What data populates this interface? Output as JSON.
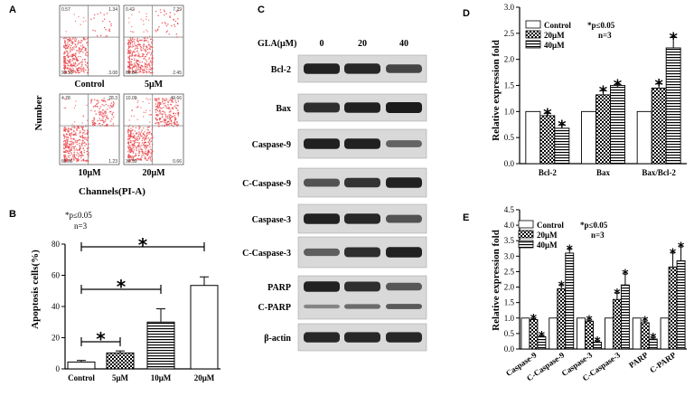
{
  "panels": {
    "a": {
      "label": "A",
      "ylabel": "Number",
      "xlabel": "Channels(PI-A)",
      "plots": [
        {
          "name": "Control",
          "q": [
            "0.57",
            "1.34",
            "93.10",
            "3.08"
          ]
        },
        {
          "name": "5μM",
          "q": [
            "0.42",
            "7.29",
            "89.84",
            "2.45"
          ]
        },
        {
          "name": "10μM",
          "q": [
            "4.78",
            "28.3",
            "65.66",
            "1.23"
          ]
        },
        {
          "name": "20μM",
          "q": [
            "10.09",
            "49.66",
            "39.59",
            "0.66"
          ]
        }
      ]
    },
    "c": {
      "label": "C",
      "header_label": "GLA(μM)",
      "doses": [
        "0",
        "20",
        "40"
      ],
      "blots": [
        {
          "name": "Bcl-2",
          "bands": [
            0.95,
            0.9,
            0.65
          ]
        },
        {
          "name": "Bax",
          "bands": [
            0.85,
            0.95,
            1.0
          ]
        },
        {
          "name": "Caspase-9",
          "bands": [
            0.95,
            0.95,
            0.4
          ]
        },
        {
          "name": "C-Caspase-9",
          "bands": [
            0.55,
            0.8,
            0.95
          ]
        },
        {
          "name": "Caspase-3",
          "bands": [
            0.95,
            0.9,
            0.55
          ]
        },
        {
          "name": "C-Caspase-3",
          "bands": [
            0.45,
            0.85,
            0.95
          ]
        },
        {
          "name": "PARP",
          "sub": "C-PARP",
          "bands": [
            0.95,
            0.85,
            0.5
          ],
          "sub_bands": [
            0.3,
            0.55,
            0.7
          ]
        },
        {
          "name": "β-actin",
          "bands": [
            0.9,
            0.9,
            0.9
          ]
        }
      ]
    }
  },
  "chart_data": [
    {
      "id": "B",
      "type": "bar",
      "label": "B",
      "ylabel": "Apoptosis cells(%)",
      "ylim": [
        0,
        80
      ],
      "yticks": [
        0,
        20,
        40,
        60,
        80
      ],
      "categories": [
        "Control",
        "5μM",
        "10μM",
        "20μM"
      ],
      "values": [
        4.4,
        10.2,
        30,
        53.5
      ],
      "errors": [
        1,
        1.3,
        8.5,
        5.5
      ],
      "annotation_lines": [
        "*p≤0.05",
        "n=3"
      ],
      "significance_marker": "*"
    },
    {
      "id": "D",
      "type": "bar",
      "label": "D",
      "ylabel": "Relative expression fold",
      "ylim": [
        0,
        3
      ],
      "yticks": [
        0.0,
        0.5,
        1.0,
        1.5,
        2.0,
        2.5,
        3.0
      ],
      "ytick_labels": [
        "0.0",
        "0.5",
        "1.0",
        "1.5",
        "2.0",
        "2.5",
        "3.0"
      ],
      "categories": [
        "Bcl-2",
        "Bax",
        "Bax/Bcl-2"
      ],
      "series": [
        {
          "name": "Control",
          "values": [
            1.0,
            1.0,
            1.0
          ],
          "errors": [
            0,
            0,
            0
          ]
        },
        {
          "name": "20μM",
          "values": [
            0.92,
            1.32,
            1.45
          ],
          "errors": [
            0.04,
            0.08,
            0.08
          ]
        },
        {
          "name": "40μM",
          "values": [
            0.68,
            1.5,
            2.22
          ],
          "errors": [
            0.06,
            0.02,
            0.2
          ]
        }
      ],
      "legend": {
        "position": "top-left",
        "annotation": [
          "*p≤0.05",
          "n=3"
        ]
      },
      "significance_marker": "*"
    },
    {
      "id": "E",
      "type": "bar",
      "label": "E",
      "ylabel": "Relative expression fold",
      "ylim": [
        0,
        4.5
      ],
      "yticks": [
        0.0,
        0.5,
        1.0,
        1.5,
        2.0,
        2.5,
        3.0,
        3.5,
        4.0,
        4.5
      ],
      "ytick_labels": [
        "0.0",
        "0.5",
        "1.0",
        "1.5",
        "2.0",
        "2.5",
        "3.0",
        "3.5",
        "4.0",
        "4.5"
      ],
      "categories": [
        "Caspase-9",
        "C-Caspase-9",
        "Caspase-3",
        "C-Caspase-3",
        "PARP",
        "C-PARP"
      ],
      "series": [
        {
          "name": "Control",
          "values": [
            1.0,
            1.0,
            1.0,
            1.0,
            1.0,
            1.0
          ],
          "errors": [
            0,
            0,
            0,
            0,
            0,
            0
          ]
        },
        {
          "name": "20μM",
          "values": [
            0.95,
            1.95,
            0.9,
            1.6,
            0.85,
            2.65
          ],
          "errors": [
            0.03,
            0.1,
            0.03,
            0.2,
            0.05,
            0.45
          ]
        },
        {
          "name": "40μM",
          "values": [
            0.4,
            3.1,
            0.22,
            2.07,
            0.32,
            2.85
          ],
          "errors": [
            0.03,
            0.12,
            0.03,
            0.35,
            0.04,
            0.45
          ]
        }
      ],
      "legend": {
        "position": "top-left",
        "annotation": [
          "*p≤0.05",
          "n=3"
        ]
      },
      "significance_marker": "*"
    }
  ]
}
